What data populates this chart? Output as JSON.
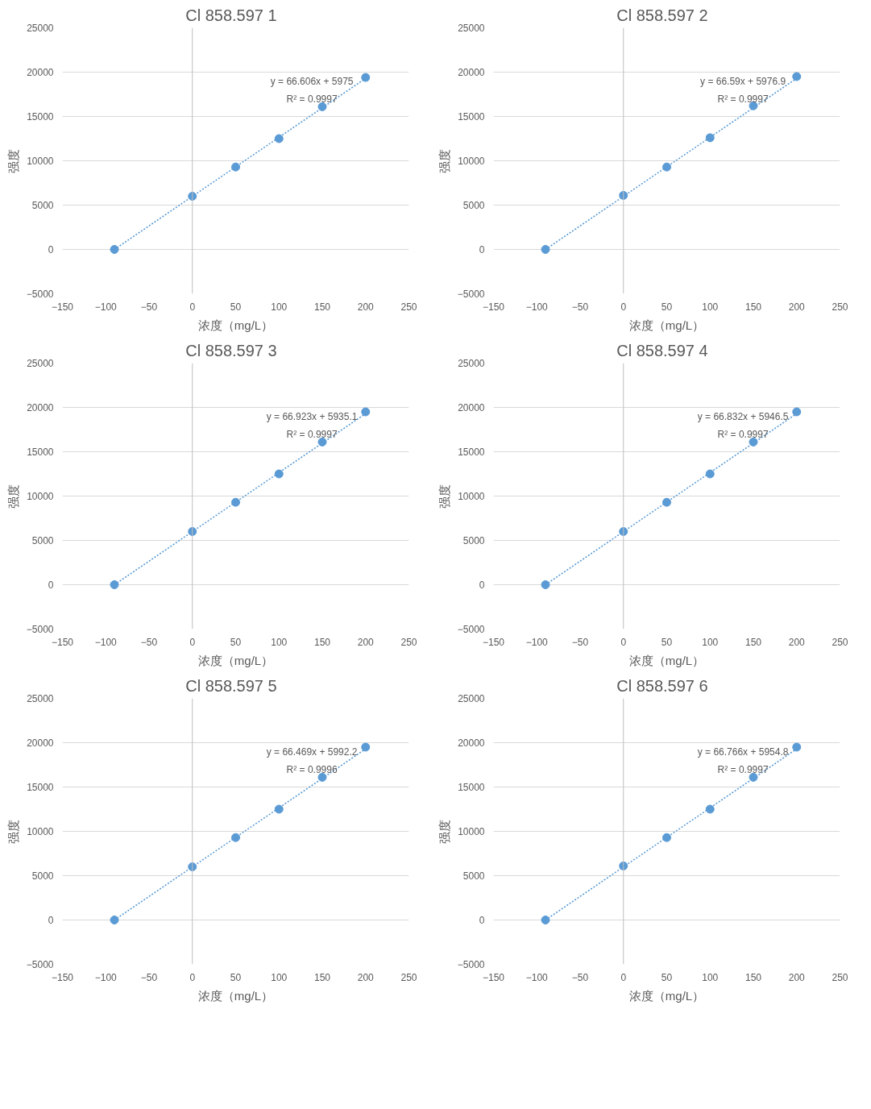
{
  "chart_data": [
    {
      "type": "scatter",
      "title": "Cl  858.597  1",
      "xlabel": "浓度（mg/L）",
      "ylabel": "强度",
      "xlim": [
        -150,
        250
      ],
      "ylim": [
        -5000,
        25000
      ],
      "xticks": [
        -150,
        -100,
        -50,
        0,
        50,
        100,
        150,
        200,
        250
      ],
      "yticks": [
        -5000,
        0,
        5000,
        10000,
        15000,
        20000,
        25000
      ],
      "grid": "y",
      "series": [
        {
          "type": "scatter",
          "marker": "circle",
          "color": "#5b9bd5",
          "x": [
            -90,
            0,
            50,
            100,
            150,
            200
          ],
          "values": [
            0,
            6000,
            9300,
            12500,
            16100,
            19400
          ]
        },
        {
          "type": "line",
          "line_style": "dotted",
          "color": "#5b9bd5",
          "x": [
            -90,
            200
          ],
          "values": [
            0,
            19300
          ]
        }
      ],
      "annotations": [
        "y = 66.606x + 5975",
        "R² = 0.9997"
      ]
    },
    {
      "type": "scatter",
      "title": "Cl  858.597  2",
      "xlabel": "浓度（mg/L）",
      "ylabel": "强度",
      "xlim": [
        -150,
        250
      ],
      "ylim": [
        -5000,
        25000
      ],
      "xticks": [
        -150,
        -100,
        -50,
        0,
        50,
        100,
        150,
        200,
        250
      ],
      "yticks": [
        -5000,
        0,
        5000,
        10000,
        15000,
        20000,
        25000
      ],
      "grid": "y",
      "series": [
        {
          "type": "scatter",
          "marker": "circle",
          "color": "#5b9bd5",
          "x": [
            -90,
            0,
            50,
            100,
            150,
            200
          ],
          "values": [
            0,
            6100,
            9300,
            12600,
            16200,
            19500
          ]
        },
        {
          "type": "line",
          "line_style": "dotted",
          "color": "#5b9bd5",
          "x": [
            -90,
            200
          ],
          "values": [
            0,
            19300
          ]
        }
      ],
      "annotations": [
        "y = 66.59x + 5976.9",
        "R² = 0.9997"
      ]
    },
    {
      "type": "scatter",
      "title": "Cl  858.597  3",
      "xlabel": "浓度（mg/L）",
      "ylabel": "强度",
      "xlim": [
        -150,
        250
      ],
      "ylim": [
        -5000,
        25000
      ],
      "xticks": [
        -150,
        -100,
        -50,
        0,
        50,
        100,
        150,
        200,
        250
      ],
      "yticks": [
        -5000,
        0,
        5000,
        10000,
        15000,
        20000,
        25000
      ],
      "grid": "y",
      "series": [
        {
          "type": "scatter",
          "marker": "circle",
          "color": "#5b9bd5",
          "x": [
            -90,
            0,
            50,
            100,
            150,
            200
          ],
          "values": [
            0,
            6000,
            9300,
            12500,
            16100,
            19500
          ]
        },
        {
          "type": "line",
          "line_style": "dotted",
          "color": "#5b9bd5",
          "x": [
            -90,
            200
          ],
          "values": [
            0,
            19300
          ]
        }
      ],
      "annotations": [
        "y = 66.923x + 5935.1",
        "R² = 0.9997"
      ]
    },
    {
      "type": "scatter",
      "title": "Cl  858.597  4",
      "xlabel": "浓度（mg/L）",
      "ylabel": "强度",
      "xlim": [
        -150,
        250
      ],
      "ylim": [
        -5000,
        25000
      ],
      "xticks": [
        -150,
        -100,
        -50,
        0,
        50,
        100,
        150,
        200,
        250
      ],
      "yticks": [
        -5000,
        0,
        5000,
        10000,
        15000,
        20000,
        25000
      ],
      "grid": "y",
      "series": [
        {
          "type": "scatter",
          "marker": "circle",
          "color": "#5b9bd5",
          "x": [
            -90,
            0,
            50,
            100,
            150,
            200
          ],
          "values": [
            0,
            6000,
            9300,
            12500,
            16100,
            19500
          ]
        },
        {
          "type": "line",
          "line_style": "dotted",
          "color": "#5b9bd5",
          "x": [
            -90,
            200
          ],
          "values": [
            0,
            19300
          ]
        }
      ],
      "annotations": [
        "y = 66.832x + 5946.5",
        "R² = 0.9997"
      ]
    },
    {
      "type": "scatter",
      "title": "Cl  858.597  5",
      "xlabel": "浓度（mg/L）",
      "ylabel": "强度",
      "xlim": [
        -150,
        250
      ],
      "ylim": [
        -5000,
        25000
      ],
      "xticks": [
        -150,
        -100,
        -50,
        0,
        50,
        100,
        150,
        200,
        250
      ],
      "yticks": [
        -5000,
        0,
        5000,
        10000,
        15000,
        20000,
        25000
      ],
      "grid": "y",
      "series": [
        {
          "type": "scatter",
          "marker": "circle",
          "color": "#5b9bd5",
          "x": [
            -90,
            0,
            50,
            100,
            150,
            200
          ],
          "values": [
            0,
            6000,
            9300,
            12500,
            16100,
            19500
          ]
        },
        {
          "type": "line",
          "line_style": "dotted",
          "color": "#5b9bd5",
          "x": [
            -90,
            200
          ],
          "values": [
            0,
            19300
          ]
        }
      ],
      "annotations": [
        "y = 66.469x + 5992.2",
        "R² = 0.9996"
      ]
    },
    {
      "type": "scatter",
      "title": "Cl  858.597  6",
      "xlabel": "浓度（mg/L）",
      "ylabel": "强度",
      "xlim": [
        -150,
        250
      ],
      "ylim": [
        -5000,
        25000
      ],
      "xticks": [
        -150,
        -100,
        -50,
        0,
        50,
        100,
        150,
        200,
        250
      ],
      "yticks": [
        -5000,
        0,
        5000,
        10000,
        15000,
        20000,
        25000
      ],
      "grid": "y",
      "series": [
        {
          "type": "scatter",
          "marker": "circle",
          "color": "#5b9bd5",
          "x": [
            -90,
            0,
            50,
            100,
            150,
            200
          ],
          "values": [
            0,
            6100,
            9300,
            12500,
            16100,
            19500
          ]
        },
        {
          "type": "line",
          "line_style": "dotted",
          "color": "#5b9bd5",
          "x": [
            -90,
            200
          ],
          "values": [
            0,
            19300
          ]
        }
      ],
      "annotations": [
        "y = 66.766x + 5954.8",
        "R² = 0.9997"
      ]
    }
  ]
}
